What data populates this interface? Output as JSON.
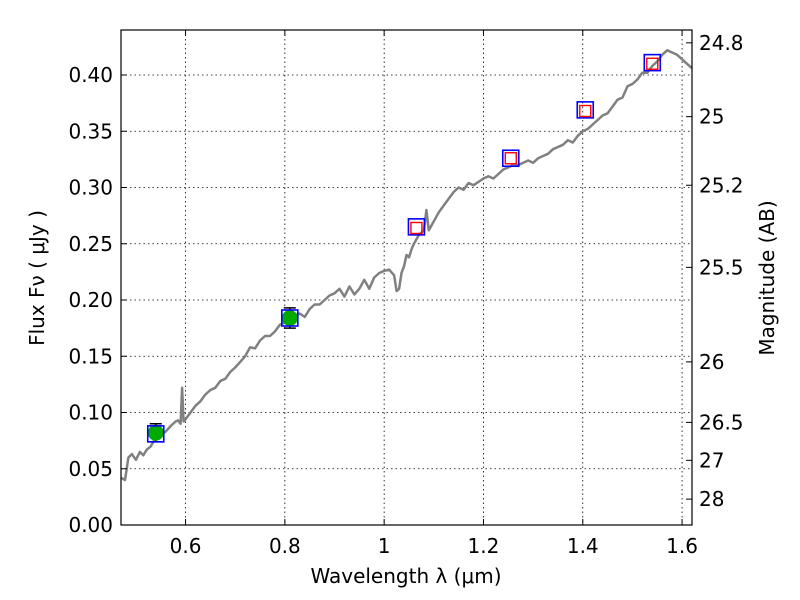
{
  "chart_data": {
    "type": "scatter",
    "xlabel": "Wavelength  λ (μm)",
    "ylabel": "Flux  Fν  ( μJy )",
    "ylabel_right": "Magnitude (AB)",
    "xlim": [
      0.47,
      1.62
    ],
    "ylim": [
      0.0,
      0.44
    ],
    "grid": true,
    "x_ticks": [
      {
        "value": 0.6,
        "label": "0.6"
      },
      {
        "value": 0.8,
        "label": "0.8"
      },
      {
        "value": 1.0,
        "label": "1"
      },
      {
        "value": 1.2,
        "label": "1.2"
      },
      {
        "value": 1.4,
        "label": "1.4"
      },
      {
        "value": 1.6,
        "label": "1.6"
      }
    ],
    "y_ticks": [
      {
        "value": 0.0,
        "label": "0.00"
      },
      {
        "value": 0.05,
        "label": "0.05"
      },
      {
        "value": 0.1,
        "label": "0.10"
      },
      {
        "value": 0.15,
        "label": "0.15"
      },
      {
        "value": 0.2,
        "label": "0.20"
      },
      {
        "value": 0.25,
        "label": "0.25"
      },
      {
        "value": 0.3,
        "label": "0.30"
      },
      {
        "value": 0.35,
        "label": "0.35"
      },
      {
        "value": 0.4,
        "label": "0.40"
      }
    ],
    "y2_ticks": [
      {
        "flux": 0.4286,
        "label": "24.8"
      },
      {
        "flux": 0.363,
        "label": "25"
      },
      {
        "flux": 0.302,
        "label": "25.2"
      },
      {
        "flux": 0.229,
        "label": "25.5"
      },
      {
        "flux": 0.145,
        "label": "26"
      },
      {
        "flux": 0.0912,
        "label": "26.5"
      },
      {
        "flux": 0.0575,
        "label": "27"
      },
      {
        "flux": 0.023,
        "label": "28"
      }
    ],
    "model_spectrum": {
      "color": "#808080",
      "x": [
        0.47,
        0.478,
        0.485,
        0.492,
        0.5,
        0.508,
        0.515,
        0.522,
        0.53,
        0.54,
        0.55,
        0.56,
        0.57,
        0.58,
        0.585,
        0.59,
        0.593,
        0.596,
        0.6,
        0.61,
        0.62,
        0.63,
        0.64,
        0.65,
        0.66,
        0.67,
        0.68,
        0.69,
        0.7,
        0.71,
        0.72,
        0.73,
        0.74,
        0.75,
        0.76,
        0.77,
        0.78,
        0.79,
        0.8,
        0.81,
        0.82,
        0.83,
        0.84,
        0.85,
        0.86,
        0.87,
        0.88,
        0.89,
        0.9,
        0.91,
        0.92,
        0.93,
        0.94,
        0.95,
        0.96,
        0.97,
        0.98,
        0.99,
        1.0,
        1.01,
        1.02,
        1.025,
        1.03,
        1.035,
        1.04,
        1.045,
        1.05,
        1.055,
        1.06,
        1.07,
        1.08,
        1.085,
        1.09,
        1.1,
        1.11,
        1.12,
        1.13,
        1.14,
        1.15,
        1.16,
        1.17,
        1.18,
        1.19,
        1.2,
        1.21,
        1.22,
        1.23,
        1.24,
        1.25,
        1.26,
        1.27,
        1.28,
        1.29,
        1.3,
        1.31,
        1.32,
        1.33,
        1.34,
        1.35,
        1.36,
        1.37,
        1.38,
        1.39,
        1.4,
        1.41,
        1.42,
        1.43,
        1.44,
        1.45,
        1.46,
        1.47,
        1.48,
        1.49,
        1.5,
        1.51,
        1.52,
        1.53,
        1.54,
        1.55,
        1.56,
        1.57,
        1.58,
        1.59,
        1.6,
        1.61,
        1.62
      ],
      "y": [
        0.042,
        0.04,
        0.06,
        0.063,
        0.058,
        0.065,
        0.062,
        0.067,
        0.07,
        0.078,
        0.08,
        0.083,
        0.088,
        0.092,
        0.093,
        0.09,
        0.122,
        0.092,
        0.094,
        0.1,
        0.106,
        0.11,
        0.116,
        0.12,
        0.122,
        0.128,
        0.13,
        0.136,
        0.14,
        0.145,
        0.15,
        0.158,
        0.157,
        0.164,
        0.168,
        0.168,
        0.172,
        0.178,
        0.18,
        0.184,
        0.186,
        0.188,
        0.185,
        0.192,
        0.196,
        0.196,
        0.2,
        0.204,
        0.206,
        0.21,
        0.203,
        0.212,
        0.205,
        0.21,
        0.218,
        0.21,
        0.22,
        0.224,
        0.226,
        0.227,
        0.222,
        0.208,
        0.21,
        0.224,
        0.23,
        0.24,
        0.238,
        0.245,
        0.25,
        0.258,
        0.262,
        0.28,
        0.262,
        0.27,
        0.278,
        0.284,
        0.29,
        0.296,
        0.3,
        0.298,
        0.304,
        0.302,
        0.305,
        0.308,
        0.31,
        0.308,
        0.312,
        0.316,
        0.318,
        0.32,
        0.32,
        0.322,
        0.324,
        0.322,
        0.326,
        0.328,
        0.33,
        0.334,
        0.336,
        0.338,
        0.342,
        0.34,
        0.346,
        0.35,
        0.352,
        0.356,
        0.36,
        0.364,
        0.366,
        0.372,
        0.378,
        0.38,
        0.39,
        0.392,
        0.396,
        0.402,
        0.402,
        0.408,
        0.412,
        0.418,
        0.422,
        0.42,
        0.418,
        0.414,
        0.41,
        0.406
      ]
    },
    "observed_points": {
      "marker": "green circle with error bar",
      "color": "#00aa00",
      "points": [
        {
          "x": 0.54,
          "y": 0.082,
          "err": 0.008
        },
        {
          "x": 0.81,
          "y": 0.184,
          "err": 0.009
        }
      ]
    },
    "model_photometry_blue": {
      "marker": "blue square",
      "color": "#0000ff",
      "points": [
        {
          "x": 0.54,
          "y": 0.081
        },
        {
          "x": 0.81,
          "y": 0.184
        },
        {
          "x": 1.065,
          "y": 0.265
        },
        {
          "x": 1.255,
          "y": 0.326
        },
        {
          "x": 1.405,
          "y": 0.369
        },
        {
          "x": 1.54,
          "y": 0.411
        }
      ]
    },
    "model_photometry_red": {
      "marker": "red square",
      "color": "#ff0000",
      "points": [
        {
          "x": 1.065,
          "y": 0.264
        },
        {
          "x": 1.255,
          "y": 0.326
        },
        {
          "x": 1.405,
          "y": 0.368
        },
        {
          "x": 1.54,
          "y": 0.41
        }
      ]
    }
  }
}
